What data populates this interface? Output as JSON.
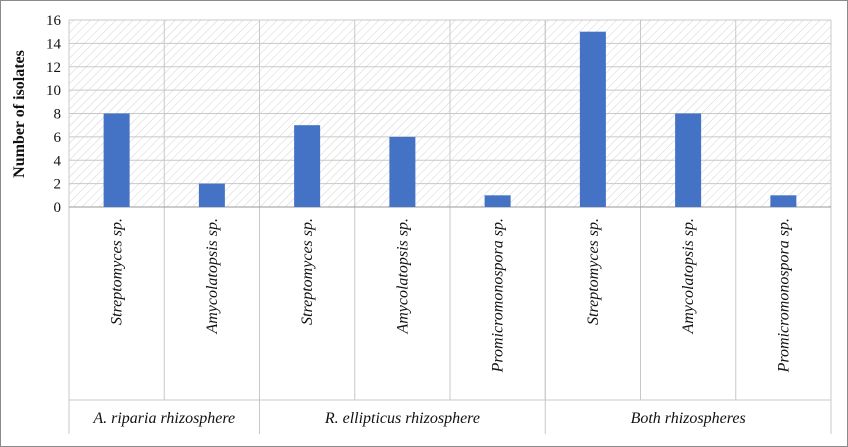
{
  "chart_data": {
    "type": "bar",
    "ylabel": "Number of isolates",
    "ylim": [
      0,
      16
    ],
    "yticks": [
      0,
      2,
      4,
      6,
      8,
      10,
      12,
      14,
      16
    ],
    "grid": true,
    "groups": [
      {
        "label": "A. riparia rhizosphere",
        "categories": [
          "Streptomyces sp.",
          "Amycolatopsis sp."
        ],
        "values": [
          8,
          2
        ]
      },
      {
        "label": "R. ellipticus rhizosphere",
        "categories": [
          "Streptomyces sp.",
          "Amycolatopsis sp.",
          "Promicromonospora sp."
        ],
        "values": [
          7,
          6,
          1
        ]
      },
      {
        "label": "Both rhizospheres",
        "categories": [
          "Streptomyces sp.",
          "Amycolatopsis sp.",
          "Promicromonospora sp."
        ],
        "values": [
          15,
          8,
          1
        ]
      }
    ],
    "bar_color": "#4472c4"
  }
}
